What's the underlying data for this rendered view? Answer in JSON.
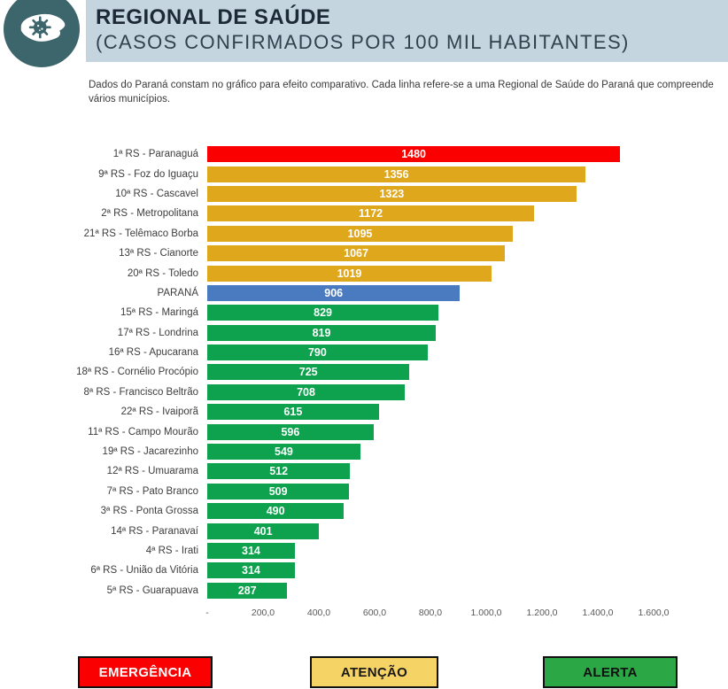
{
  "header": {
    "title": "REGIONAL DE SAÚDE",
    "subtitle": "(CASOS CONFIRMADOS POR 100 MIL HABITANTES)",
    "icon": "parana-state-virus-icon",
    "band_color": "#c4d5e0",
    "icon_color": "#3d656c"
  },
  "description": "Dados do Paraná constam no gráfico para efeito comparativo. Cada linha refere-se a uma Regional de Saúde do Paraná que compreende vários municípios.",
  "chart_data": {
    "type": "bar",
    "orientation": "horizontal",
    "title": "REGIONAL DE SAÚDE (CASOS CONFIRMADOS POR 100 MIL HABITANTES)",
    "xlabel": "",
    "ylabel": "",
    "xlim": [
      0,
      1600
    ],
    "x_ticks": [
      "-",
      "200,0",
      "400,0",
      "600,0",
      "800,0",
      "1.000,0",
      "1.200,0",
      "1.400,0",
      "1.600,0"
    ],
    "grid": false,
    "value_label_position": "inside-center",
    "colors": {
      "red": "#fb0000",
      "gold": "#dfa81c",
      "blue": "#4a7bc0",
      "green": "#0ea24e"
    },
    "items": [
      {
        "label": "1ª RS - Paranaguá",
        "value": 1480,
        "color": "red"
      },
      {
        "label": "9ª RS - Foz do Iguaçu",
        "value": 1356,
        "color": "gold"
      },
      {
        "label": "10ª RS - Cascavel",
        "value": 1323,
        "color": "gold"
      },
      {
        "label": "2ª RS - Metropolitana",
        "value": 1172,
        "color": "gold"
      },
      {
        "label": "21ª RS - Telêmaco Borba",
        "value": 1095,
        "color": "gold"
      },
      {
        "label": "13ª RS - Cianorte",
        "value": 1067,
        "color": "gold"
      },
      {
        "label": "20ª RS - Toledo",
        "value": 1019,
        "color": "gold"
      },
      {
        "label": "PARANÁ",
        "value": 906,
        "color": "blue"
      },
      {
        "label": "15ª RS - Maringá",
        "value": 829,
        "color": "green"
      },
      {
        "label": "17ª RS - Londrina",
        "value": 819,
        "color": "green"
      },
      {
        "label": "16ª RS - Apucarana",
        "value": 790,
        "color": "green"
      },
      {
        "label": "18ª RS - Cornélio Procópio",
        "value": 725,
        "color": "green"
      },
      {
        "label": "8ª RS - Francisco Beltrão",
        "value": 708,
        "color": "green"
      },
      {
        "label": "22ª RS - Ivaiporã",
        "value": 615,
        "color": "green"
      },
      {
        "label": "11ª RS - Campo Mourão",
        "value": 596,
        "color": "green"
      },
      {
        "label": "19ª RS - Jacarezinho",
        "value": 549,
        "color": "green"
      },
      {
        "label": "12ª RS - Umuarama",
        "value": 512,
        "color": "green"
      },
      {
        "label": "7ª RS - Pato Branco",
        "value": 509,
        "color": "green"
      },
      {
        "label": "3ª RS - Ponta Grossa",
        "value": 490,
        "color": "green"
      },
      {
        "label": "14ª RS - Paranavaí",
        "value": 401,
        "color": "green"
      },
      {
        "label": "4ª RS - Irati",
        "value": 314,
        "color": "green"
      },
      {
        "label": "6ª RS - União da Vitória",
        "value": 314,
        "color": "green"
      },
      {
        "label": "5ª RS - Guarapuava",
        "value": 287,
        "color": "green"
      }
    ]
  },
  "legend": {
    "items": [
      {
        "name": "emergencia",
        "label": "EMERGÊNCIA",
        "color": "#fb0000",
        "text_color": "#ffffff"
      },
      {
        "name": "atencao",
        "label": "ATENÇÃO",
        "color": "#f6d365",
        "text_color": "#181818"
      },
      {
        "name": "alerta",
        "label": "ALERTA",
        "color": "#2ba845",
        "text_color": "#101010"
      }
    ]
  }
}
